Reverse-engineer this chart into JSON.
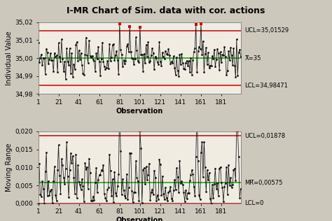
{
  "title": "I-MR Chart of Sim. data with cor. actions",
  "title_fontsize": 9,
  "background_color": "#cdc8bc",
  "plot_bg_color": "#f0ece2",
  "n_obs": 200,
  "seed": 7,
  "ucl_i": 35.01529,
  "cl_i": 35.0,
  "lcl_i": 34.98471,
  "ucl_mr": 0.01878,
  "cl_mr": 0.00575,
  "lcl_mr": 0.0,
  "ylim_i": [
    34.98,
    35.02
  ],
  "yticks_i": [
    34.98,
    34.99,
    35.0,
    35.01,
    35.02
  ],
  "ytick_labels_i": [
    "34,98",
    "34,99",
    "35,00",
    "35,01",
    "35,02"
  ],
  "ylim_mr": [
    0.0,
    0.02
  ],
  "yticks_mr": [
    0.0,
    0.005,
    0.01,
    0.015,
    0.02
  ],
  "ytick_labels_mr": [
    "0,000",
    "0,005",
    "0,010",
    "0,015",
    "0,020"
  ],
  "xticks": [
    1,
    21,
    41,
    61,
    81,
    101,
    121,
    141,
    161,
    181
  ],
  "xlabel": "Observation",
  "ylabel_i": "Individual Value",
  "ylabel_mr": "Moving Range",
  "label_ucl_i": "UCL=35,01529",
  "label_cl_i": "X̅=35",
  "label_lcl_i": "LCL=34,98471",
  "label_ucl_mr": "UCL=0,01878",
  "label_cl_mr": "MR̅=0,00575",
  "label_lcl_mr": "LCL=0",
  "line_color": "#111111",
  "marker_color": "#111111",
  "ucl_color": "#cc0000",
  "lcl_color": "#cc0000",
  "cl_color": "#00aa00",
  "out_color": "#cc0000",
  "annotation_fontsize": 6,
  "axis_fontsize": 6.5,
  "label_fontsize": 7,
  "out_i_indices": [
    80,
    90,
    100,
    155,
    160
  ],
  "out_mr_index": 100,
  "sigma_factor": 0.0051
}
